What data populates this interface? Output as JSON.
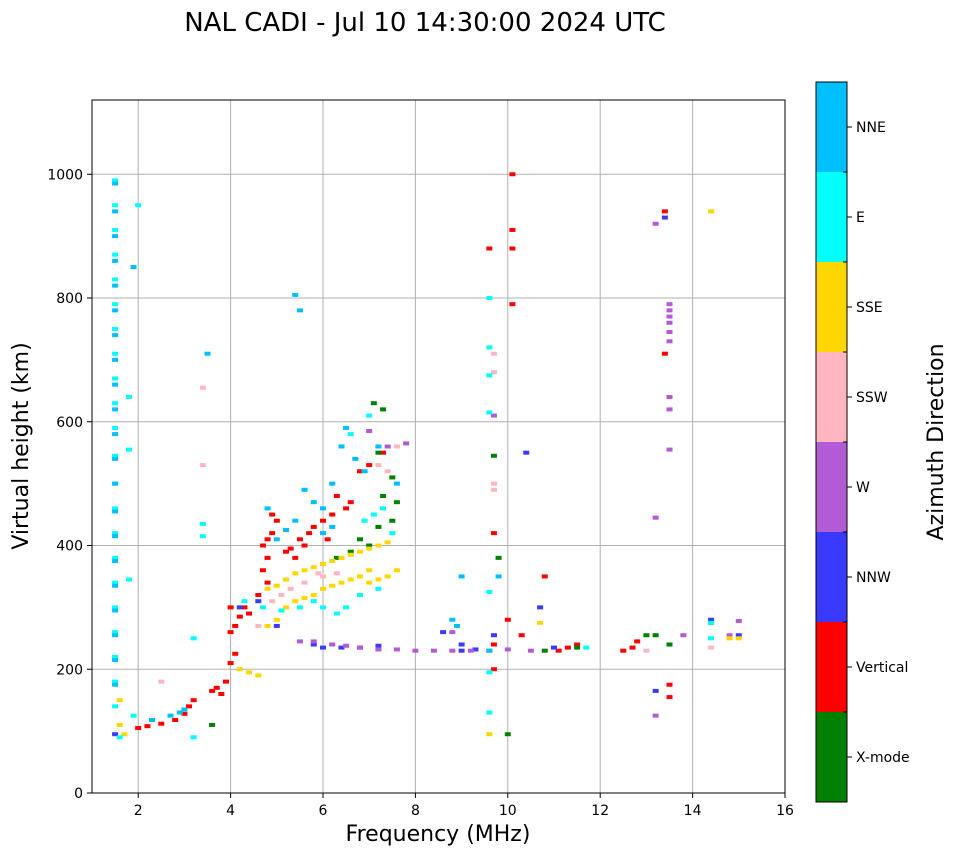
{
  "chart_data": {
    "type": "scatter",
    "title": "NAL CADI - Jul 10 14:30:00 2024 UTC",
    "xlabel": "Frequency (MHz)",
    "ylabel": "Virtual height (km)",
    "xlim": [
      1,
      16
    ],
    "ylim": [
      0,
      1120
    ],
    "x_ticks": [
      2,
      4,
      6,
      8,
      10,
      12,
      14,
      16
    ],
    "y_ticks": [
      0,
      200,
      400,
      600,
      800,
      1000
    ],
    "grid": true,
    "colorbar": {
      "label": "Azimuth Direction",
      "categories": [
        {
          "name": "X-mode",
          "color": "#008000"
        },
        {
          "name": "Vertical",
          "color": "#ff0000"
        },
        {
          "name": "NNW",
          "color": "#3a3aff"
        },
        {
          "name": "W",
          "color": "#b35ad6"
        },
        {
          "name": "SSW",
          "color": "#ffb6c1"
        },
        {
          "name": "SSE",
          "color": "#ffd700"
        },
        {
          "name": "E",
          "color": "#00ffff"
        },
        {
          "name": "NNE",
          "color": "#00bfff"
        }
      ]
    },
    "series": [
      {
        "name": "Vertical",
        "points": [
          [
            2.0,
            105
          ],
          [
            2.2,
            108
          ],
          [
            2.5,
            112
          ],
          [
            2.8,
            118
          ],
          [
            3.0,
            128
          ],
          [
            3.1,
            140
          ],
          [
            3.2,
            150
          ],
          [
            3.6,
            165
          ],
          [
            3.7,
            170
          ],
          [
            3.8,
            160
          ],
          [
            3.9,
            180
          ],
          [
            4.0,
            210
          ],
          [
            4.1,
            225
          ],
          [
            4.0,
            260
          ],
          [
            4.1,
            270
          ],
          [
            4.2,
            285
          ],
          [
            4.0,
            300
          ],
          [
            4.3,
            300
          ],
          [
            4.4,
            290
          ],
          [
            4.6,
            320
          ],
          [
            4.8,
            340
          ],
          [
            4.7,
            360
          ],
          [
            4.8,
            380
          ],
          [
            4.7,
            400
          ],
          [
            4.8,
            410
          ],
          [
            4.9,
            420
          ],
          [
            5.0,
            440
          ],
          [
            4.9,
            450
          ],
          [
            5.2,
            390
          ],
          [
            5.3,
            395
          ],
          [
            5.4,
            380
          ],
          [
            5.5,
            410
          ],
          [
            5.6,
            400
          ],
          [
            5.7,
            420
          ],
          [
            5.8,
            430
          ],
          [
            6.0,
            440
          ],
          [
            6.1,
            410
          ],
          [
            6.2,
            450
          ],
          [
            6.3,
            480
          ],
          [
            6.5,
            460
          ],
          [
            6.6,
            470
          ],
          [
            6.8,
            520
          ],
          [
            7.0,
            530
          ],
          [
            7.3,
            550
          ],
          [
            10.1,
            1000
          ],
          [
            10.1,
            910
          ],
          [
            10.1,
            880
          ],
          [
            10.1,
            790
          ],
          [
            13.4,
            940
          ],
          [
            13.4,
            710
          ],
          [
            13.5,
            175
          ],
          [
            13.5,
            155
          ],
          [
            12.5,
            230
          ],
          [
            12.7,
            235
          ],
          [
            12.8,
            245
          ],
          [
            9.6,
            880
          ],
          [
            9.7,
            420
          ],
          [
            9.7,
            240
          ],
          [
            9.7,
            200
          ],
          [
            10.0,
            280
          ],
          [
            10.3,
            255
          ],
          [
            10.8,
            350
          ],
          [
            11.1,
            230
          ],
          [
            11.3,
            235
          ],
          [
            11.5,
            240
          ]
        ]
      },
      {
        "name": "X-mode",
        "points": [
          [
            7.1,
            630
          ],
          [
            7.3,
            620
          ],
          [
            7.2,
            550
          ],
          [
            7.5,
            510
          ],
          [
            7.3,
            480
          ],
          [
            7.6,
            470
          ],
          [
            7.5,
            440
          ],
          [
            7.2,
            430
          ],
          [
            7.0,
            400
          ],
          [
            6.8,
            410
          ],
          [
            6.6,
            390
          ],
          [
            6.3,
            380
          ],
          [
            3.6,
            110
          ],
          [
            10.0,
            95
          ],
          [
            9.7,
            545
          ],
          [
            9.8,
            380
          ],
          [
            10.8,
            230
          ],
          [
            11.5,
            235
          ],
          [
            13.0,
            255
          ],
          [
            13.2,
            255
          ],
          [
            14.4,
            275
          ],
          [
            13.5,
            240
          ]
        ]
      },
      {
        "name": "NNW",
        "points": [
          [
            1.5,
            95
          ],
          [
            5.8,
            240
          ],
          [
            6.0,
            235
          ],
          [
            6.4,
            235
          ],
          [
            6.8,
            235
          ],
          [
            7.2,
            238
          ],
          [
            9.0,
            230
          ],
          [
            9.3,
            232
          ],
          [
            9.7,
            255
          ],
          [
            10.4,
            550
          ],
          [
            10.7,
            300
          ],
          [
            13.2,
            165
          ],
          [
            13.4,
            930
          ],
          [
            8.6,
            260
          ],
          [
            9.0,
            240
          ],
          [
            11.0,
            235
          ],
          [
            14.4,
            280
          ],
          [
            15.0,
            255
          ],
          [
            4.2,
            300
          ],
          [
            4.6,
            310
          ],
          [
            5.0,
            270
          ]
        ]
      },
      {
        "name": "W",
        "points": [
          [
            5.5,
            245
          ],
          [
            5.8,
            245
          ],
          [
            6.2,
            240
          ],
          [
            6.5,
            238
          ],
          [
            6.8,
            235
          ],
          [
            7.2,
            232
          ],
          [
            7.6,
            232
          ],
          [
            8.0,
            230
          ],
          [
            8.4,
            230
          ],
          [
            8.8,
            230
          ],
          [
            9.2,
            230
          ],
          [
            9.6,
            230
          ],
          [
            10.0,
            232
          ],
          [
            10.5,
            230
          ],
          [
            13.2,
            920
          ],
          [
            13.5,
            790
          ],
          [
            13.5,
            780
          ],
          [
            13.5,
            770
          ],
          [
            13.5,
            760
          ],
          [
            13.5,
            745
          ],
          [
            13.5,
            730
          ],
          [
            13.5,
            640
          ],
          [
            13.5,
            620
          ],
          [
            13.5,
            555
          ],
          [
            13.2,
            445
          ],
          [
            13.2,
            125
          ],
          [
            13.8,
            255
          ],
          [
            14.8,
            255
          ],
          [
            15.0,
            278
          ],
          [
            8.8,
            260
          ],
          [
            7.0,
            585
          ],
          [
            9.7,
            610
          ],
          [
            7.4,
            560
          ],
          [
            7.8,
            565
          ]
        ]
      },
      {
        "name": "SSW",
        "points": [
          [
            3.4,
            655
          ],
          [
            3.4,
            530
          ],
          [
            4.6,
            270
          ],
          [
            4.9,
            310
          ],
          [
            5.1,
            320
          ],
          [
            5.3,
            330
          ],
          [
            5.6,
            340
          ],
          [
            5.9,
            355
          ],
          [
            7.2,
            530
          ],
          [
            7.4,
            520
          ],
          [
            7.6,
            560
          ],
          [
            9.7,
            710
          ],
          [
            9.7,
            680
          ],
          [
            9.7,
            500
          ],
          [
            9.7,
            490
          ],
          [
            13.0,
            230
          ],
          [
            14.4,
            235
          ],
          [
            2.5,
            180
          ],
          [
            6.0,
            350
          ],
          [
            6.3,
            355
          ]
        ]
      },
      {
        "name": "SSE",
        "points": [
          [
            1.6,
            150
          ],
          [
            1.6,
            110
          ],
          [
            1.7,
            95
          ],
          [
            4.2,
            200
          ],
          [
            4.4,
            195
          ],
          [
            4.6,
            190
          ],
          [
            4.8,
            270
          ],
          [
            5.0,
            280
          ],
          [
            5.2,
            300
          ],
          [
            5.4,
            310
          ],
          [
            5.6,
            315
          ],
          [
            5.8,
            320
          ],
          [
            6.0,
            330
          ],
          [
            6.2,
            335
          ],
          [
            6.4,
            340
          ],
          [
            6.6,
            345
          ],
          [
            6.8,
            350
          ],
          [
            7.0,
            360
          ],
          [
            4.8,
            330
          ],
          [
            5.0,
            335
          ],
          [
            5.2,
            345
          ],
          [
            5.4,
            355
          ],
          [
            5.6,
            360
          ],
          [
            5.8,
            365
          ],
          [
            6.0,
            370
          ],
          [
            6.2,
            375
          ],
          [
            6.4,
            380
          ],
          [
            6.6,
            385
          ],
          [
            6.8,
            390
          ],
          [
            7.0,
            395
          ],
          [
            7.2,
            400
          ],
          [
            7.4,
            405
          ],
          [
            7.0,
            340
          ],
          [
            7.2,
            345
          ],
          [
            7.4,
            350
          ],
          [
            7.6,
            360
          ],
          [
            10.7,
            275
          ],
          [
            14.4,
            940
          ],
          [
            14.8,
            250
          ],
          [
            15.0,
            250
          ],
          [
            9.6,
            95
          ]
        ]
      },
      {
        "name": "E",
        "points": [
          [
            1.5,
            990
          ],
          [
            1.5,
            950
          ],
          [
            1.5,
            910
          ],
          [
            1.5,
            870
          ],
          [
            1.5,
            830
          ],
          [
            1.5,
            790
          ],
          [
            1.5,
            750
          ],
          [
            1.5,
            710
          ],
          [
            1.5,
            670
          ],
          [
            1.5,
            630
          ],
          [
            1.5,
            590
          ],
          [
            1.5,
            545
          ],
          [
            1.5,
            500
          ],
          [
            1.5,
            460
          ],
          [
            1.5,
            420
          ],
          [
            1.5,
            380
          ],
          [
            1.5,
            340
          ],
          [
            1.5,
            300
          ],
          [
            1.5,
            260
          ],
          [
            1.5,
            220
          ],
          [
            1.5,
            180
          ],
          [
            1.5,
            140
          ],
          [
            1.8,
            640
          ],
          [
            1.8,
            555
          ],
          [
            1.8,
            345
          ],
          [
            1.9,
            125
          ],
          [
            2.0,
            950
          ],
          [
            3.2,
            90
          ],
          [
            3.4,
            435
          ],
          [
            3.4,
            415
          ],
          [
            4.3,
            310
          ],
          [
            4.7,
            300
          ],
          [
            5.1,
            295
          ],
          [
            5.5,
            300
          ],
          [
            5.8,
            310
          ],
          [
            6.0,
            300
          ],
          [
            6.3,
            290
          ],
          [
            6.5,
            300
          ],
          [
            6.8,
            320
          ],
          [
            7.2,
            330
          ],
          [
            6.9,
            440
          ],
          [
            7.1,
            450
          ],
          [
            7.3,
            460
          ],
          [
            7.5,
            420
          ],
          [
            6.6,
            580
          ],
          [
            7.0,
            610
          ],
          [
            9.6,
            800
          ],
          [
            9.6,
            720
          ],
          [
            9.6,
            675
          ],
          [
            9.6,
            615
          ],
          [
            9.6,
            325
          ],
          [
            9.6,
            195
          ],
          [
            9.6,
            130
          ],
          [
            11.7,
            235
          ],
          [
            14.4,
            250
          ],
          [
            14.4,
            275
          ],
          [
            1.6,
            90
          ],
          [
            3.2,
            250
          ]
        ]
      },
      {
        "name": "NNE",
        "points": [
          [
            1.5,
            985
          ],
          [
            1.5,
            940
          ],
          [
            1.5,
            900
          ],
          [
            1.5,
            860
          ],
          [
            1.5,
            820
          ],
          [
            1.5,
            780
          ],
          [
            1.5,
            740
          ],
          [
            1.5,
            700
          ],
          [
            1.5,
            660
          ],
          [
            1.5,
            620
          ],
          [
            1.5,
            580
          ],
          [
            1.5,
            540
          ],
          [
            1.5,
            500
          ],
          [
            1.5,
            455
          ],
          [
            1.5,
            415
          ],
          [
            1.5,
            375
          ],
          [
            1.5,
            335
          ],
          [
            1.5,
            295
          ],
          [
            1.5,
            255
          ],
          [
            1.5,
            215
          ],
          [
            1.5,
            175
          ],
          [
            1.9,
            850
          ],
          [
            3.5,
            710
          ],
          [
            5.4,
            805
          ],
          [
            5.5,
            780
          ],
          [
            5.6,
            490
          ],
          [
            5.8,
            470
          ],
          [
            6.0,
            460
          ],
          [
            6.2,
            500
          ],
          [
            6.4,
            560
          ],
          [
            6.5,
            590
          ],
          [
            6.7,
            540
          ],
          [
            6.9,
            520
          ],
          [
            7.2,
            560
          ],
          [
            7.6,
            500
          ],
          [
            6.0,
            420
          ],
          [
            6.2,
            430
          ],
          [
            5.0,
            410
          ],
          [
            5.2,
            425
          ],
          [
            4.8,
            460
          ],
          [
            5.4,
            440
          ],
          [
            8.8,
            280
          ],
          [
            8.9,
            270
          ],
          [
            9.0,
            350
          ],
          [
            9.6,
            230
          ],
          [
            9.8,
            350
          ],
          [
            2.3,
            118
          ],
          [
            2.7,
            125
          ],
          [
            2.9,
            130
          ],
          [
            3.0,
            135
          ]
        ]
      }
    ]
  }
}
